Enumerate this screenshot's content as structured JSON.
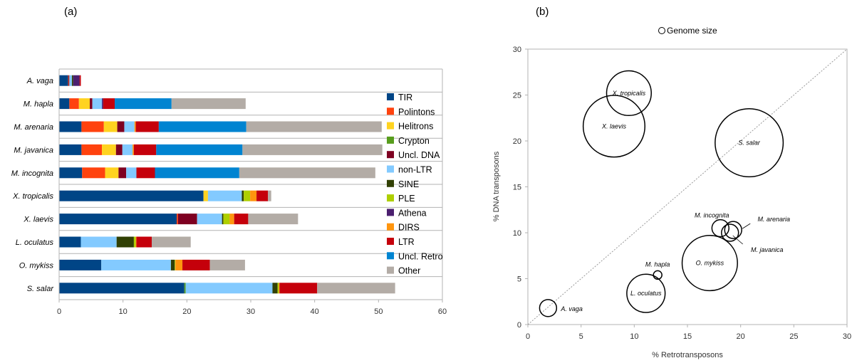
{
  "chart_data": [
    {
      "type": "bar",
      "orientation": "horizontal",
      "stacked": true,
      "panel_label": "(a)",
      "categories": [
        "A. vaga",
        "M. hapla",
        "M. arenaria",
        "M. javanica",
        "M. incognita",
        "X. tropicalis",
        "X. laevis",
        "L. oculatus",
        "O. mykiss",
        "S. salar"
      ],
      "xlim": [
        0,
        60
      ],
      "xticks": [
        0,
        10,
        20,
        30,
        40,
        50,
        60
      ],
      "grid": true,
      "legend_position": "right",
      "series": [
        {
          "name": "TIR",
          "color": "#004586",
          "values": [
            1.4,
            1.6,
            3.5,
            3.5,
            3.6,
            22.6,
            18.4,
            3.4,
            6.6,
            19.6
          ]
        },
        {
          "name": "Polintons",
          "color": "#ff420e",
          "values": [
            0.1,
            1.5,
            3.5,
            3.2,
            3.6,
            0,
            0.2,
            0,
            0,
            0
          ]
        },
        {
          "name": "Helitrons",
          "color": "#ffd320",
          "values": [
            0,
            1.7,
            2.1,
            2.2,
            2.1,
            0.7,
            0,
            0,
            0,
            0
          ]
        },
        {
          "name": "Crypton",
          "color": "#579d1c",
          "values": [
            0,
            0,
            0,
            0,
            0,
            0,
            0,
            0,
            0,
            0.2
          ]
        },
        {
          "name": "Uncl. DNA",
          "color": "#7e0021",
          "values": [
            0.1,
            0.4,
            1.1,
            1.0,
            1.2,
            0,
            3.0,
            0,
            0,
            0
          ]
        },
        {
          "name": "non-LTR",
          "color": "#83caff",
          "values": [
            0.4,
            1.5,
            1.6,
            1.6,
            1.6,
            5.3,
            3.9,
            5.6,
            10.9,
            13.6
          ]
        },
        {
          "name": "SINE",
          "color": "#314004",
          "values": [
            0.2,
            0,
            0,
            0,
            0,
            0.3,
            0.2,
            2.7,
            0.6,
            0.8
          ]
        },
        {
          "name": "PLE",
          "color": "#aecf00",
          "values": [
            0,
            0,
            0,
            0,
            0,
            1.0,
            1.0,
            0.3,
            0.1,
            0.2
          ]
        },
        {
          "name": "Athena",
          "color": "#4b1f6f",
          "values": [
            1.0,
            0.2,
            0,
            0,
            0,
            0,
            0,
            0,
            0,
            0
          ]
        },
        {
          "name": "DIRS",
          "color": "#ff950e",
          "values": [
            0,
            0,
            0.2,
            0.2,
            0,
            1.0,
            0.7,
            0.1,
            1.1,
            0.1
          ]
        },
        {
          "name": "LTR",
          "color": "#c5000b",
          "values": [
            0.2,
            1.8,
            3.6,
            3.5,
            2.9,
            1.8,
            2.2,
            2.4,
            4.3,
            5.9
          ]
        },
        {
          "name": "Uncl. Retro",
          "color": "#0084d1",
          "values": [
            0,
            8.9,
            13.7,
            13.5,
            13.2,
            0,
            0,
            0,
            0,
            0
          ]
        },
        {
          "name": "Other",
          "color": "#b3aca6",
          "values": [
            0,
            11.6,
            21.2,
            21.9,
            21.3,
            0.5,
            7.8,
            6.1,
            5.5,
            12.2
          ]
        }
      ]
    },
    {
      "type": "bubble",
      "panel_label": "(b)",
      "legend_label": "Genome size",
      "xlabel": "% Retrotransposons",
      "ylabel": "% DNA transposons",
      "xlim": [
        0,
        30
      ],
      "ylim": [
        0,
        30
      ],
      "xticks": [
        0,
        5,
        10,
        15,
        20,
        25,
        30
      ],
      "yticks": [
        0,
        5,
        10,
        15,
        20,
        25,
        30
      ],
      "diagonal": true,
      "points": [
        {
          "label": "A. vaga",
          "x": 1.9,
          "y": 1.8,
          "r": 0.8
        },
        {
          "label": "M. hapla",
          "x": 12.2,
          "y": 5.4,
          "r": 0.4
        },
        {
          "label": "L. oculatus",
          "x": 11.1,
          "y": 3.4,
          "r": 1.8
        },
        {
          "label": "O. mykiss",
          "x": 17.1,
          "y": 6.7,
          "r": 2.6
        },
        {
          "label": "M. incognita",
          "x": 18.1,
          "y": 10.5,
          "r": 0.8
        },
        {
          "label": "M. javanica",
          "x": 19.0,
          "y": 10.0,
          "r": 0.8
        },
        {
          "label": "M. arenaria",
          "x": 19.3,
          "y": 10.3,
          "r": 0.8
        },
        {
          "label": "X. laevis",
          "x": 8.1,
          "y": 21.6,
          "r": 2.9
        },
        {
          "label": "X. tropicalis",
          "x": 9.5,
          "y": 25.2,
          "r": 2.1
        },
        {
          "label": "S. salar",
          "x": 20.8,
          "y": 19.8,
          "r": 3.2
        }
      ]
    }
  ]
}
